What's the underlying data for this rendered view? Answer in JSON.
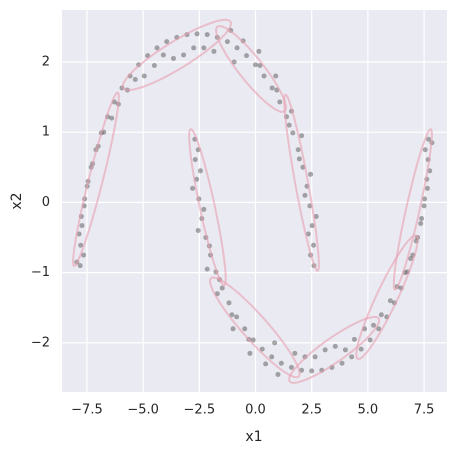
{
  "chart_data": {
    "type": "scatter",
    "x_label": "x1",
    "y_label": "x2",
    "xlim": [
      -8.61,
      8.52
    ],
    "ylim": [
      -2.7,
      2.74
    ],
    "xticks": [
      {
        "value": -7.5,
        "label": "−7.5"
      },
      {
        "value": -5,
        "label": "−5.0"
      },
      {
        "value": -2.5,
        "label": "−2.5"
      },
      {
        "value": 0,
        "label": "0.0"
      },
      2.5,
      {
        "value": 5,
        "label": "5.0"
      },
      7.5
    ],
    "yticks": [
      {
        "value": -2,
        "label": "−2"
      },
      {
        "value": -1,
        "label": "−1"
      },
      0,
      1,
      2
    ],
    "grid": true,
    "color": "#555555",
    "ellipse_color": "#e8a0b0",
    "x": [
      2.6,
      2.45,
      2.58,
      2.35,
      2.52,
      2.7,
      2.42,
      2.2,
      2.29,
      2.45,
      2.11,
      1.95,
      1.9,
      2.05,
      1.66,
      1.5,
      1.38,
      1.6,
      1.08,
      0.95,
      0.74,
      0.9,
      0.38,
      0.2,
      0.0,
      0.15,
      -0.4,
      -0.55,
      -0.82,
      -0.95,
      -1.25,
      -1.1,
      -1.7,
      -1.85,
      -2.15,
      -2.3,
      -2.6,
      -2.75,
      -3.05,
      -3.2,
      -3.5,
      -3.65,
      -3.95,
      -4.1,
      -4.38,
      -4.5,
      -4.8,
      -4.95,
      -5.2,
      -5.35,
      -5.58,
      -5.7,
      -5.94,
      -6.1,
      -6.28,
      -6.4,
      -6.58,
      -6.75,
      -6.86,
      -7.0,
      -7.1,
      -7.25,
      -7.31,
      -7.45,
      -7.49,
      -7.6,
      -7.62,
      -7.75,
      -7.72,
      -7.85,
      -7.78,
      -7.65,
      -7.8,
      -7.95,
      -2.7,
      -2.55,
      -2.68,
      -2.45,
      -2.62,
      -2.8,
      -2.52,
      -2.3,
      -2.39,
      -2.55,
      -2.21,
      -2.05,
      -2.0,
      -2.15,
      -1.76,
      -1.6,
      -1.48,
      -1.7,
      -1.18,
      -1.05,
      -0.84,
      -1.0,
      -0.48,
      -0.3,
      -0.1,
      -0.25,
      0.3,
      0.45,
      0.72,
      0.85,
      1.15,
      1.0,
      1.6,
      1.75,
      2.05,
      2.2,
      2.5,
      2.65,
      2.95,
      3.1,
      3.4,
      3.55,
      3.85,
      4.0,
      4.28,
      4.4,
      4.7,
      4.85,
      5.1,
      5.25,
      5.48,
      5.6,
      5.84,
      6.0,
      6.18,
      6.3,
      6.48,
      6.65,
      6.76,
      6.9,
      7.0,
      7.15,
      7.21,
      7.35,
      7.39,
      7.5,
      7.52,
      7.65,
      7.62,
      7.75,
      7.68,
      7.55,
      7.7,
      7.85
    ],
    "y": [
      -0.9,
      -0.75,
      -0.61,
      -0.45,
      -0.33,
      -0.2,
      -0.05,
      0.1,
      0.23,
      0.4,
      0.5,
      0.62,
      0.75,
      0.95,
      0.99,
      1.1,
      1.22,
      1.3,
      1.43,
      1.6,
      1.63,
      1.8,
      1.8,
      1.95,
      1.96,
      2.15,
      2.09,
      2.3,
      2.2,
      2.0,
      2.29,
      2.45,
      2.35,
      2.15,
      2.39,
      2.2,
      2.4,
      2.2,
      2.39,
      2.1,
      2.35,
      2.05,
      2.29,
      2.1,
      2.2,
      1.95,
      2.09,
      1.8,
      1.96,
      1.75,
      1.8,
      1.6,
      1.63,
      1.4,
      1.43,
      1.2,
      1.22,
      1.0,
      0.99,
      0.8,
      0.75,
      0.55,
      0.5,
      0.3,
      0.23,
      0.05,
      -0.05,
      -0.2,
      -0.33,
      -0.45,
      -0.61,
      -0.75,
      -0.9,
      -0.85,
      0.9,
      0.75,
      0.61,
      0.45,
      0.33,
      0.2,
      0.05,
      -0.1,
      -0.23,
      -0.4,
      -0.5,
      -0.62,
      -0.75,
      -0.95,
      -0.99,
      -1.1,
      -1.22,
      -1.3,
      -1.43,
      -1.6,
      -1.63,
      -1.8,
      -1.8,
      -1.95,
      -1.96,
      -2.15,
      -2.09,
      -2.3,
      -2.2,
      -2.0,
      -2.29,
      -2.45,
      -2.35,
      -2.15,
      -2.39,
      -2.2,
      -2.4,
      -2.2,
      -2.39,
      -2.1,
      -2.35,
      -2.05,
      -2.29,
      -2.1,
      -2.2,
      -1.95,
      -2.09,
      -1.8,
      -1.96,
      -1.75,
      -1.8,
      -1.6,
      -1.63,
      -1.4,
      -1.43,
      -1.2,
      -1.22,
      -1.0,
      -0.99,
      -0.8,
      -0.75,
      -0.55,
      -0.5,
      -0.3,
      -0.23,
      -0.05,
      0.05,
      0.2,
      0.33,
      0.45,
      0.61,
      0.75,
      0.9,
      0.85
    ],
    "ellipses": [
      {
        "center": [
          -7.1,
          0.33
        ],
        "a": 1.58,
        "b": 0.25,
        "angle": 50.8
      },
      {
        "center": [
          -3.5,
          2.1
        ],
        "a": 2.45,
        "b": 0.22,
        "angle": 10.6
      },
      {
        "center": [
          -0.2,
          1.9
        ],
        "a": 1.65,
        "b": 0.25,
        "angle": -20
      },
      {
        "center": [
          2.05,
          0.28
        ],
        "a": 1.45,
        "b": 0.25,
        "angle": -59.4
      },
      {
        "center": [
          -2.14,
          -0.07
        ],
        "a": 1.35,
        "b": 0.28,
        "angle": -54.7
      },
      {
        "center": [
          -0.03,
          -1.78
        ],
        "a": 2.1,
        "b": 0.25,
        "angle": -18.6
      },
      {
        "center": [
          3.5,
          -2.1
        ],
        "a": 2.05,
        "b": 0.2,
        "angle": 12
      },
      {
        "center": [
          5.85,
          -1.35
        ],
        "a": 1.6,
        "b": 0.28,
        "angle": 32
      },
      {
        "center": [
          7.0,
          -0.1
        ],
        "a": 1.4,
        "b": 0.25,
        "angle": 54
      }
    ]
  }
}
